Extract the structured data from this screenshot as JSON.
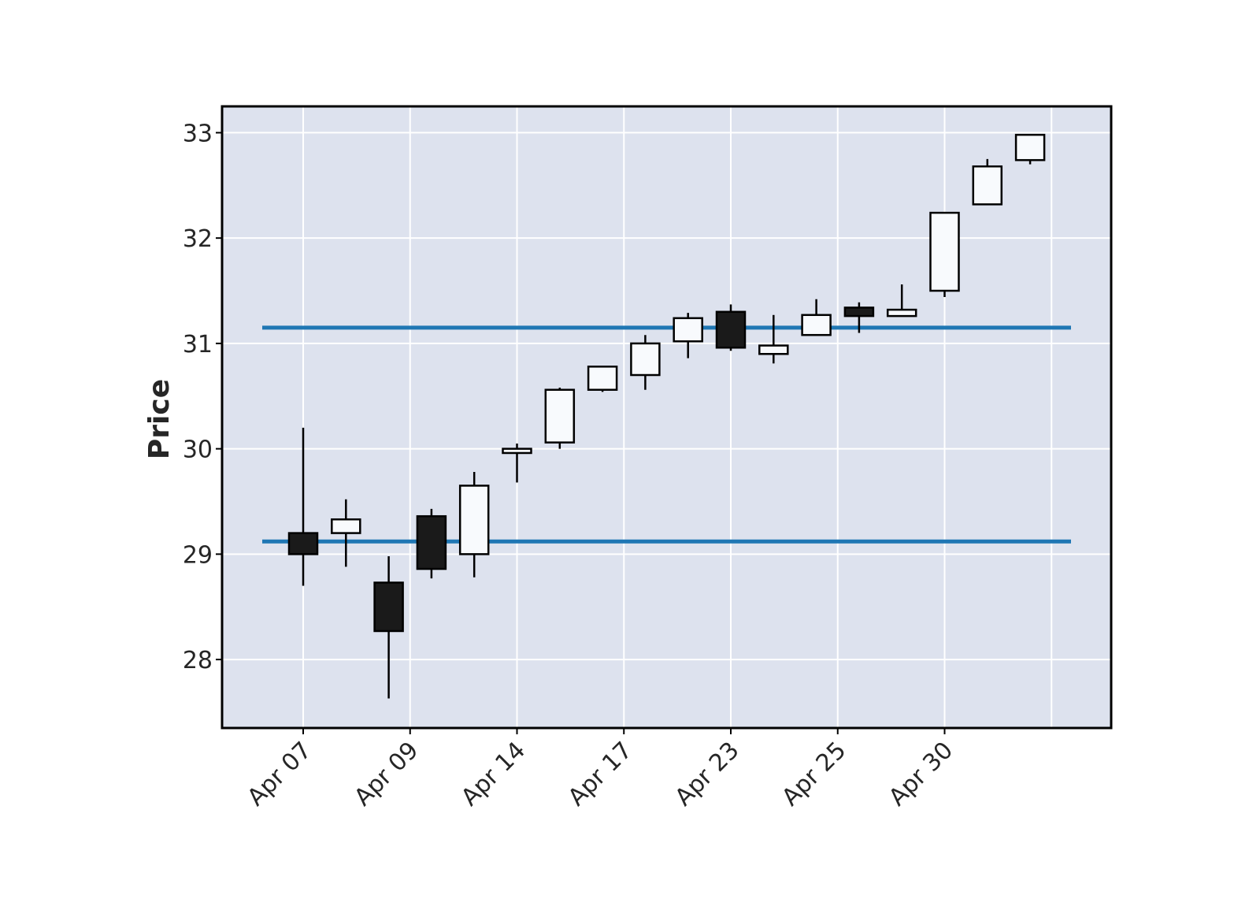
{
  "chart_data": {
    "type": "candlestick",
    "ylabel": "Price",
    "ylim": [
      27.35,
      33.25
    ],
    "yticks": [
      28,
      29,
      30,
      31,
      32,
      33
    ],
    "xtick_labels": [
      {
        "index": 0,
        "label": "Apr 07"
      },
      {
        "index": 2.5,
        "label": "Apr 09"
      },
      {
        "index": 5,
        "label": "Apr 14"
      },
      {
        "index": 7.5,
        "label": "Apr 17"
      },
      {
        "index": 10,
        "label": "Apr 23"
      },
      {
        "index": 12.5,
        "label": "Apr 25"
      },
      {
        "index": 15,
        "label": "Apr 30"
      }
    ],
    "candles": [
      {
        "open": 29.2,
        "high": 30.2,
        "low": 28.7,
        "close": 29.0
      },
      {
        "open": 29.2,
        "high": 29.52,
        "low": 28.88,
        "close": 29.33
      },
      {
        "open": 28.73,
        "high": 28.98,
        "low": 27.63,
        "close": 28.27
      },
      {
        "open": 29.36,
        "high": 29.43,
        "low": 28.77,
        "close": 28.86
      },
      {
        "open": 29.0,
        "high": 29.78,
        "low": 28.78,
        "close": 29.65
      },
      {
        "open": 29.96,
        "high": 30.05,
        "low": 29.68,
        "close": 30.0
      },
      {
        "open": 30.06,
        "high": 30.58,
        "low": 30.0,
        "close": 30.56
      },
      {
        "open": 30.56,
        "high": 30.78,
        "low": 30.54,
        "close": 30.78
      },
      {
        "open": 30.7,
        "high": 31.08,
        "low": 30.56,
        "close": 31.0
      },
      {
        "open": 31.02,
        "high": 31.29,
        "low": 30.86,
        "close": 31.24
      },
      {
        "open": 31.3,
        "high": 31.37,
        "low": 30.93,
        "close": 30.96
      },
      {
        "open": 30.9,
        "high": 31.27,
        "low": 30.81,
        "close": 30.98
      },
      {
        "open": 31.08,
        "high": 31.42,
        "low": 31.08,
        "close": 31.27
      },
      {
        "open": 31.34,
        "high": 31.39,
        "low": 31.1,
        "close": 31.26
      },
      {
        "open": 31.26,
        "high": 31.56,
        "low": 31.26,
        "close": 31.32
      },
      {
        "open": 31.5,
        "high": 32.24,
        "low": 31.44,
        "close": 32.24
      },
      {
        "open": 32.32,
        "high": 32.75,
        "low": 32.32,
        "close": 32.68
      },
      {
        "open": 32.74,
        "high": 32.98,
        "low": 32.7,
        "close": 32.98
      }
    ],
    "hlines": [
      31.15,
      29.12
    ],
    "colors": {
      "background": "#dde2ee",
      "grid": "#ffffff",
      "up_fill": "#f8fafd",
      "down_fill": "#1a1a1a",
      "edge": "#000000",
      "hline": "#1f77b4"
    },
    "grid": true
  }
}
